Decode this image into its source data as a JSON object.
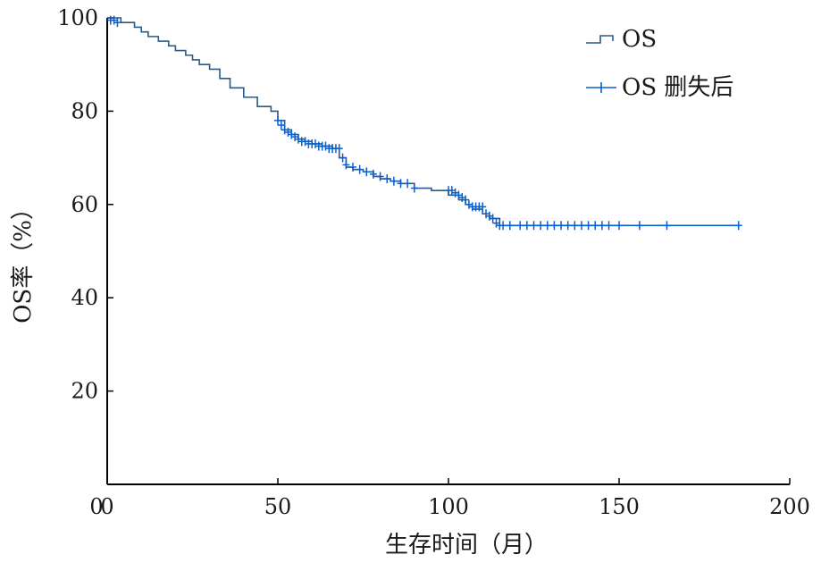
{
  "chart_data": {
    "type": "line",
    "xlabel": "生存时间（月）",
    "ylabel": "OS率（%）",
    "xlim": [
      0,
      200
    ],
    "ylim": [
      0,
      100
    ],
    "xticks": [
      "0",
      "50",
      "100",
      "150",
      "200"
    ],
    "yticks": [
      "20",
      "40",
      "60",
      "80",
      "100"
    ],
    "grid": false,
    "legend_position": "top-right",
    "colors": {
      "os_line": "#2a5a85",
      "censor_mark": "#0a5fd0"
    },
    "series": [
      {
        "name": "OS",
        "style": "step",
        "x": [
          0,
          4,
          8,
          10,
          12,
          15,
          18,
          20,
          23,
          25,
          27,
          30,
          33,
          36,
          40,
          44,
          48,
          50,
          52,
          54,
          56,
          58,
          60,
          63,
          66,
          68,
          70,
          72,
          75,
          78,
          80,
          83,
          86,
          90,
          95,
          100,
          103,
          105,
          107,
          110,
          112,
          115,
          120,
          130,
          150,
          185
        ],
        "y": [
          100,
          99,
          98,
          97,
          96,
          95,
          94,
          93,
          92,
          91,
          90,
          89,
          87,
          85,
          83,
          81,
          80,
          78,
          76,
          75,
          74,
          73.5,
          73,
          72.5,
          72,
          70,
          68,
          67.5,
          67,
          66,
          65.5,
          65,
          64.5,
          63.5,
          63,
          62,
          61,
          60,
          59,
          58,
          57,
          55.5,
          55.5,
          55.5,
          55.5,
          55.5
        ]
      },
      {
        "name": "OS 删失后",
        "style": "censor-marks",
        "x": [
          1,
          2,
          3,
          50,
          51,
          52,
          53,
          54,
          55,
          56,
          57,
          58,
          59,
          60,
          61,
          62,
          63,
          64,
          65,
          66,
          67,
          68,
          69,
          70,
          72,
          74,
          76,
          78,
          80,
          82,
          84,
          86,
          88,
          90,
          100,
          101,
          102,
          103,
          104,
          105,
          106,
          107,
          108,
          109,
          110,
          111,
          112,
          113,
          114,
          115,
          116,
          118,
          121,
          123,
          125,
          127,
          129,
          131,
          133,
          135,
          137,
          139,
          141,
          143,
          145,
          147,
          150,
          156,
          164,
          185
        ],
        "y": [
          99.5,
          99.5,
          99,
          78,
          77,
          76,
          75.5,
          75,
          74.5,
          74,
          73.5,
          73.5,
          73,
          73,
          73,
          72.5,
          72.5,
          72.5,
          72,
          72,
          72,
          72,
          70,
          68.5,
          68,
          67.5,
          67,
          66.5,
          66,
          65.5,
          65,
          64.5,
          64.5,
          63.5,
          63,
          63,
          62.5,
          62,
          61.5,
          61,
          60,
          59.5,
          59.5,
          59.5,
          59.5,
          58,
          57.5,
          57,
          56,
          55.5,
          55.5,
          55.5,
          55.5,
          55.5,
          55.5,
          55.5,
          55.5,
          55.5,
          55.5,
          55.5,
          55.5,
          55.5,
          55.5,
          55.5,
          55.5,
          55.5,
          55.5,
          55.5,
          55.5,
          55.5
        ]
      }
    ],
    "xtick_values": [
      0,
      50,
      100,
      150,
      200
    ],
    "ytick_values": [
      20,
      40,
      60,
      80,
      100
    ]
  },
  "y_origin_label": "0"
}
